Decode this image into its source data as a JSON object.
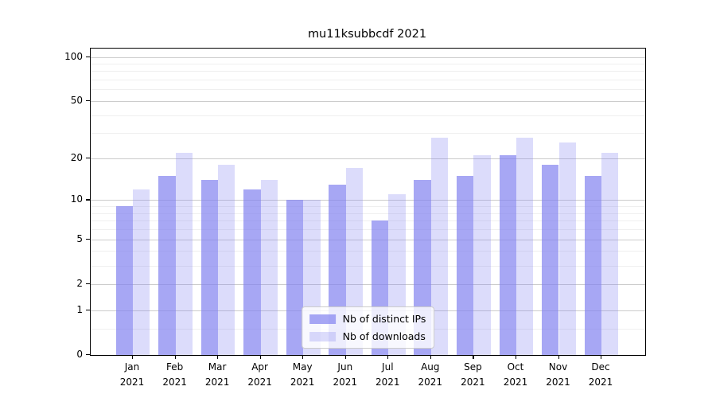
{
  "title": "mu11ksubbcdf 2021",
  "chart_data": {
    "type": "bar",
    "title": "mu11ksubbcdf 2021",
    "categories": [
      {
        "month": "Jan",
        "year": "2021"
      },
      {
        "month": "Feb",
        "year": "2021"
      },
      {
        "month": "Mar",
        "year": "2021"
      },
      {
        "month": "Apr",
        "year": "2021"
      },
      {
        "month": "May",
        "year": "2021"
      },
      {
        "month": "Jun",
        "year": "2021"
      },
      {
        "month": "Jul",
        "year": "2021"
      },
      {
        "month": "Aug",
        "year": "2021"
      },
      {
        "month": "Sep",
        "year": "2021"
      },
      {
        "month": "Oct",
        "year": "2021"
      },
      {
        "month": "Nov",
        "year": "2021"
      },
      {
        "month": "Dec",
        "year": "2021"
      }
    ],
    "series": [
      {
        "name": "Nb of distinct IPs",
        "color": "rgba(130,130,240,0.7)",
        "values": [
          9,
          15,
          14,
          12,
          10,
          13,
          7,
          14,
          15,
          21,
          18,
          15
        ]
      },
      {
        "name": "Nb of downloads",
        "color": "rgba(130,130,240,0.28)",
        "values": [
          12,
          22,
          18,
          14,
          10,
          17,
          11,
          28,
          21,
          28,
          26,
          22
        ]
      }
    ],
    "y_axis": {
      "scale": "symlog",
      "major_ticks": [
        0,
        1,
        2,
        5,
        10,
        20,
        50,
        100
      ],
      "major_tick_labels": [
        "0",
        "1",
        "2",
        "5",
        "10",
        "20",
        "50",
        "100"
      ],
      "minor_ticks": [
        0.5,
        3,
        4,
        6,
        7,
        8,
        9,
        30,
        40,
        60,
        70,
        80,
        90
      ],
      "max": 115
    },
    "grid": "on",
    "legend_position": "lower center"
  }
}
